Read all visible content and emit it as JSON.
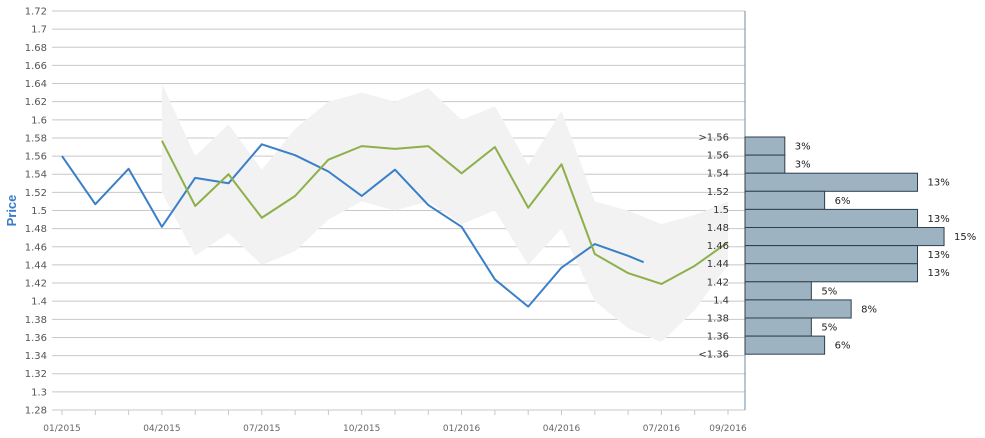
{
  "chart_data": {
    "type": "line",
    "ylabel": "Price",
    "ylim": [
      1.28,
      1.72
    ],
    "yticks": [
      "1.28",
      "1.3",
      "1.32",
      "1.34",
      "1.36",
      "1.38",
      "1.4",
      "1.42",
      "1.44",
      "1.46",
      "1.48",
      "1.5",
      "1.52",
      "1.54",
      "1.56",
      "1.58",
      "1.6",
      "1.62",
      "1.64",
      "1.66",
      "1.68",
      "1.7",
      "1.72"
    ],
    "xticks": [
      "01/2015",
      "04/2015",
      "07/2015",
      "10/2015",
      "01/2016",
      "04/2016",
      "07/2016",
      "09/2016"
    ],
    "xlim": [
      "2015-01",
      "2016-09"
    ],
    "grid": true,
    "series": [
      {
        "color": "#3a7fc8",
        "x": [
          "2015-01",
          "2015-02",
          "2015-03",
          "2015-04",
          "2015-05",
          "2015-06",
          "2015-07",
          "2015-08",
          "2015-09",
          "2015-10",
          "2015-11",
          "2015-12",
          "2016-01",
          "2016-02",
          "2016-03",
          "2016-04",
          "2016-05",
          "2016-06",
          "2016-06-15"
        ],
        "values": [
          1.56,
          1.507,
          1.546,
          1.482,
          1.536,
          1.53,
          1.573,
          1.561,
          1.543,
          1.516,
          1.545,
          1.506,
          1.482,
          1.424,
          1.394,
          1.437,
          1.463,
          1.45,
          1.443
        ]
      },
      {
        "color": "#8db04a",
        "x": [
          "2015-04",
          "2015-05",
          "2015-06",
          "2015-07",
          "2015-08",
          "2015-09",
          "2015-10",
          "2015-11",
          "2015-12",
          "2016-01",
          "2016-02",
          "2016-03",
          "2016-04",
          "2016-05",
          "2016-06",
          "2016-07",
          "2016-08",
          "2016-09"
        ],
        "values": [
          1.577,
          1.505,
          1.54,
          1.492,
          1.516,
          1.556,
          1.571,
          1.568,
          1.571,
          1.541,
          1.57,
          1.503,
          1.551,
          1.452,
          1.431,
          1.419,
          1.439,
          1.465
        ]
      }
    ],
    "band": {
      "color": "#f2f2f2",
      "x": [
        "2015-04",
        "2015-05",
        "2015-06",
        "2015-07",
        "2015-08",
        "2015-09",
        "2015-10",
        "2015-11",
        "2015-12",
        "2016-01",
        "2016-02",
        "2016-03",
        "2016-04",
        "2016-05",
        "2016-06",
        "2016-07",
        "2016-08",
        "2016-09"
      ],
      "upper": [
        1.64,
        1.56,
        1.595,
        1.545,
        1.59,
        1.62,
        1.63,
        1.62,
        1.635,
        1.6,
        1.615,
        1.55,
        1.61,
        1.51,
        1.5,
        1.485,
        1.495,
        1.51
      ],
      "lower": [
        1.52,
        1.45,
        1.475,
        1.44,
        1.455,
        1.49,
        1.51,
        1.5,
        1.51,
        1.485,
        1.5,
        1.44,
        1.48,
        1.4,
        1.37,
        1.355,
        1.39,
        1.44
      ]
    },
    "histogram": {
      "color": "#9db3c2",
      "bins": [
        {
          "label": ">1.56",
          "pct": "3%",
          "value": 3
        },
        {
          "label": "1.56",
          "pct": "3%",
          "value": 3
        },
        {
          "label": "1.54",
          "pct": "13%",
          "value": 13
        },
        {
          "label": "1.52",
          "pct": "6%",
          "value": 6
        },
        {
          "label": "1.5",
          "pct": "13%",
          "value": 13
        },
        {
          "label": "1.48",
          "pct": "15%",
          "value": 15
        },
        {
          "label": "1.46",
          "pct": "13%",
          "value": 13
        },
        {
          "label": "1.44",
          "pct": "13%",
          "value": 13
        },
        {
          "label": "1.42",
          "pct": "5%",
          "value": 5
        },
        {
          "label": "1.4",
          "pct": "8%",
          "value": 8
        },
        {
          "label": "1.38",
          "pct": "5%",
          "value": 5
        },
        {
          "label": "1.36",
          "pct": "6%",
          "value": 6
        },
        {
          "label": "<1.36",
          "pct": "",
          "value": 0
        }
      ]
    }
  }
}
